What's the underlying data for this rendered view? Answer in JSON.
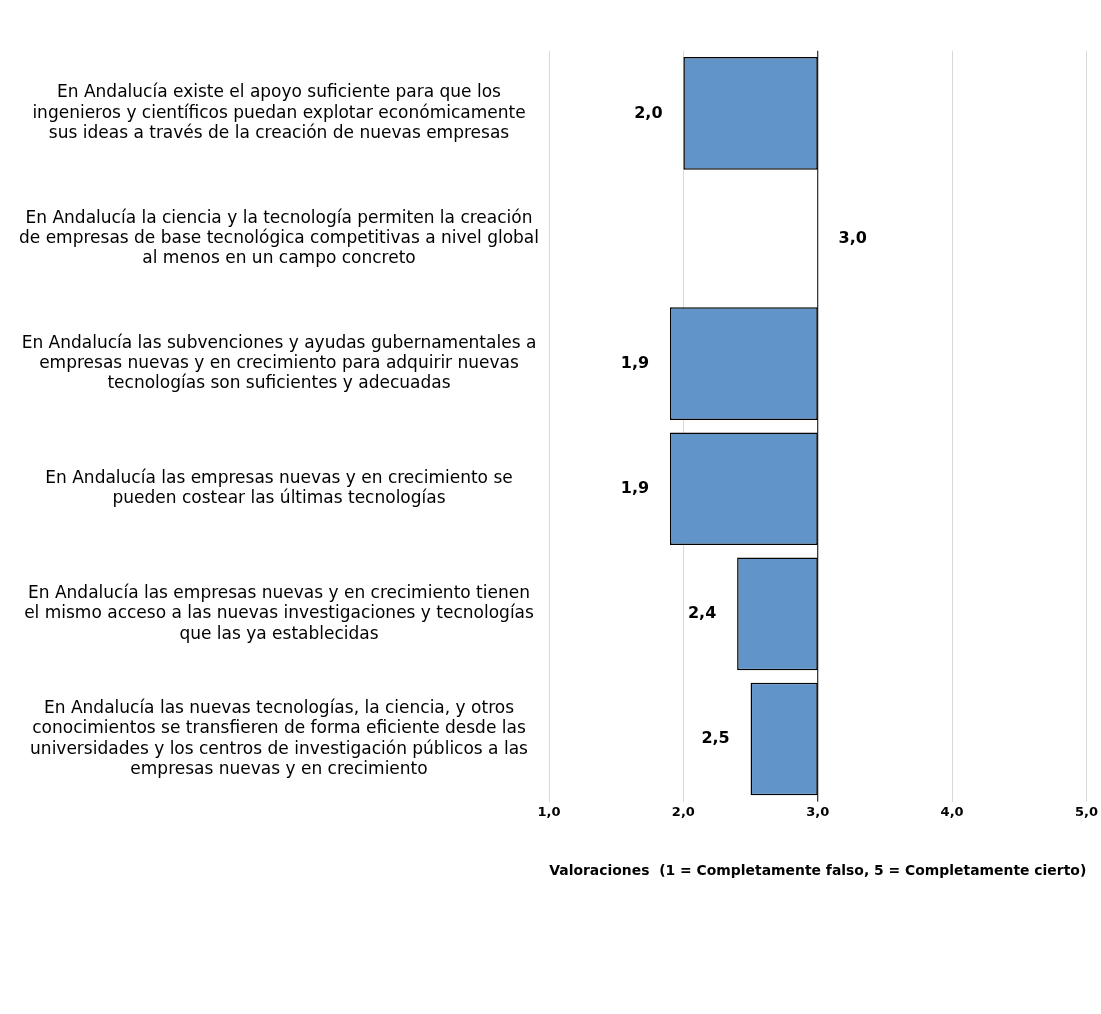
{
  "chart_data": {
    "type": "bar",
    "orientation": "horizontal",
    "xlabel": "Valoraciones  (1 = Completamente falso, 5 = Completamente cierto)",
    "categories": [
      "En Andalucía existe el apoyo suficiente para que los ingenieros y científicos puedan explotar económicamente sus ideas a través de la creación de nuevas empresas",
      "En Andalucía la ciencia y la tecnología permiten la creación de empresas de base tecnológica competitivas a nivel global al menos en un campo concreto",
      "En Andalucía las subvenciones y ayudas gubernamentales a empresas nuevas y en crecimiento para adquirir nuevas tecnologías son suficientes y adecuadas",
      "En Andalucía las empresas nuevas y en crecimiento se pueden costear las últimas tecnologías",
      "En Andalucía las empresas nuevas y en crecimiento tienen el mismo acceso a las nuevas investigaciones y tecnologías que las ya establecidas",
      "En Andalucía las nuevas tecnologías, la ciencia, y otros conocimientos se transfieren de forma eficiente desde las universidades y los centros de investigación públicos a las empresas nuevas y en crecimiento"
    ],
    "values": [
      -1.0,
      null,
      -1.1,
      -1.1,
      -0.6,
      -0.5
    ],
    "base": [
      3,
      null,
      3,
      3,
      3,
      3
    ],
    "value_labels": [
      "2,0",
      "3,0",
      "1,9",
      "1,9",
      "2,4",
      "2,5"
    ],
    "color": "#6194c9",
    "xlim": [
      1,
      5
    ],
    "xticks": [
      {
        "value": 1,
        "label": "1,0"
      },
      {
        "value": 2,
        "label": "2,0"
      },
      {
        "value": 3,
        "label": "3,0"
      },
      {
        "value": 4,
        "label": "4,0"
      },
      {
        "value": 5,
        "label": "5,0"
      }
    ],
    "ref_lines": [
      {
        "axis": "x",
        "value": 3,
        "color": "#000000"
      }
    ],
    "grid": "x",
    "legend": false
  }
}
